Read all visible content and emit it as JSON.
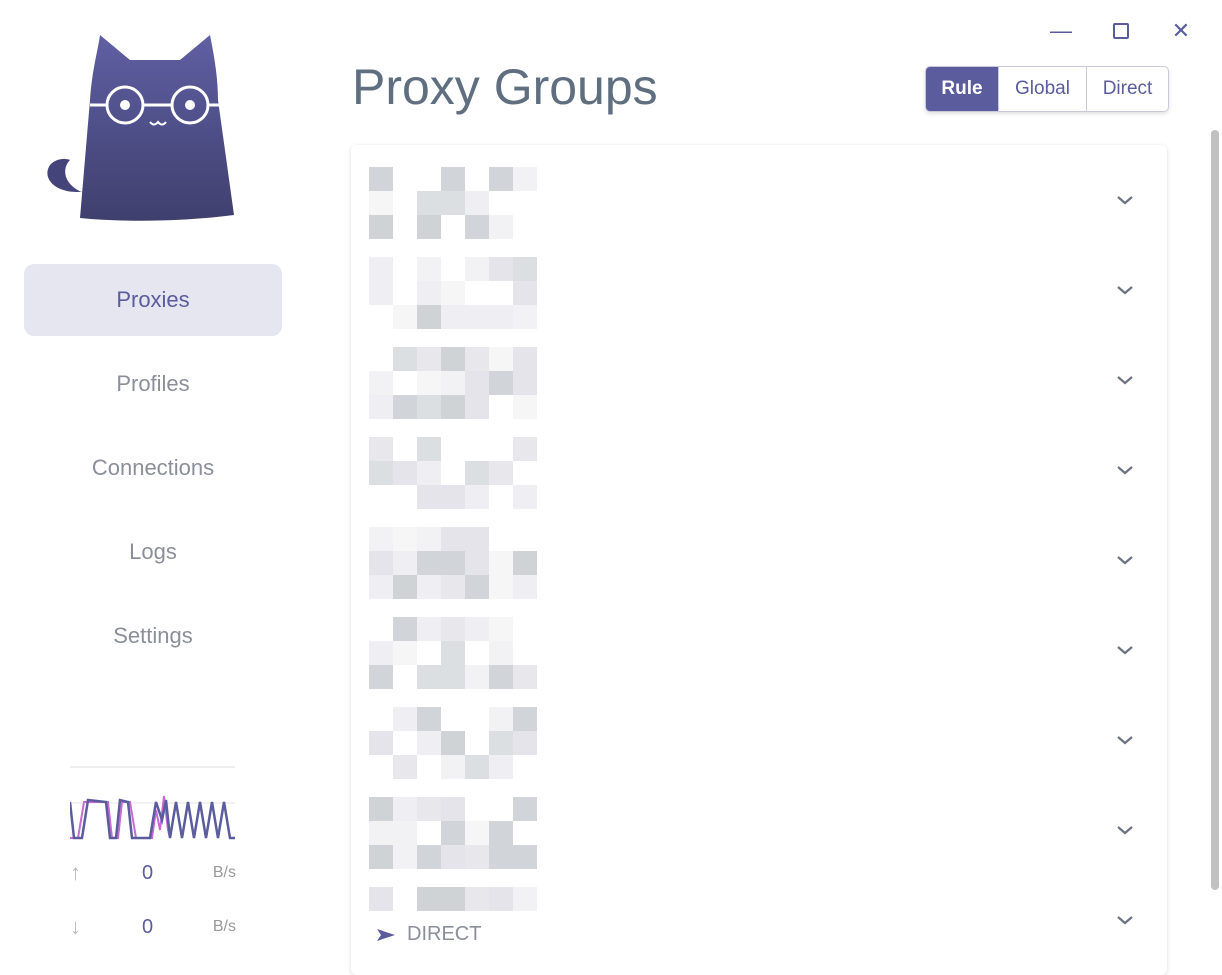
{
  "window": {
    "minimize_icon": "minimize-icon",
    "maximize_icon": "maximize-icon",
    "close_icon": "close-icon"
  },
  "sidebar": {
    "items": [
      {
        "label": "Proxies",
        "active": true
      },
      {
        "label": "Profiles"
      },
      {
        "label": "Connections"
      },
      {
        "label": "Logs"
      },
      {
        "label": "Settings"
      }
    ]
  },
  "traffic": {
    "upload_value": "0",
    "upload_unit": "B/s",
    "download_value": "0",
    "download_unit": "B/s",
    "colors": {
      "upload": "#5b5c9d",
      "download": "#c86ad4"
    }
  },
  "header": {
    "title": "Proxy Groups",
    "modes": [
      {
        "label": "Rule",
        "active": true
      },
      {
        "label": "Global"
      },
      {
        "label": "Direct"
      }
    ]
  },
  "groups": {
    "count": 9,
    "last_visible_proxy": "DIRECT"
  },
  "colors": {
    "accent": "#5b5c9d"
  }
}
